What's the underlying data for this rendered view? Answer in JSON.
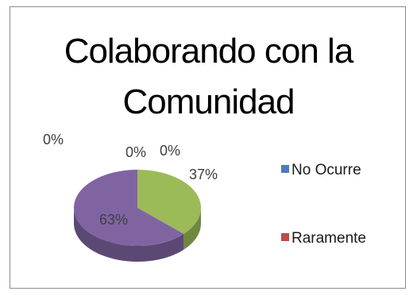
{
  "chart_data": {
    "type": "pie",
    "title_lines": [
      "Colaborando con la",
      "Comunidad"
    ],
    "legend": {
      "placement": "right"
    },
    "slices": [
      {
        "name": "No Ocurre",
        "value": 0,
        "label": "0%",
        "color": "#4a7ebb"
      },
      {
        "name": "Raramente",
        "value": 0,
        "label": "0%",
        "color": "#be4b48"
      },
      {
        "name": "",
        "value": 0,
        "label": "0%",
        "color": "#9bbb59"
      },
      {
        "name": "",
        "value": 37,
        "label": "37%",
        "color": "#9bbb59"
      },
      {
        "name": "",
        "value": 63,
        "label": "63%",
        "color": "#8064a2"
      }
    ]
  }
}
